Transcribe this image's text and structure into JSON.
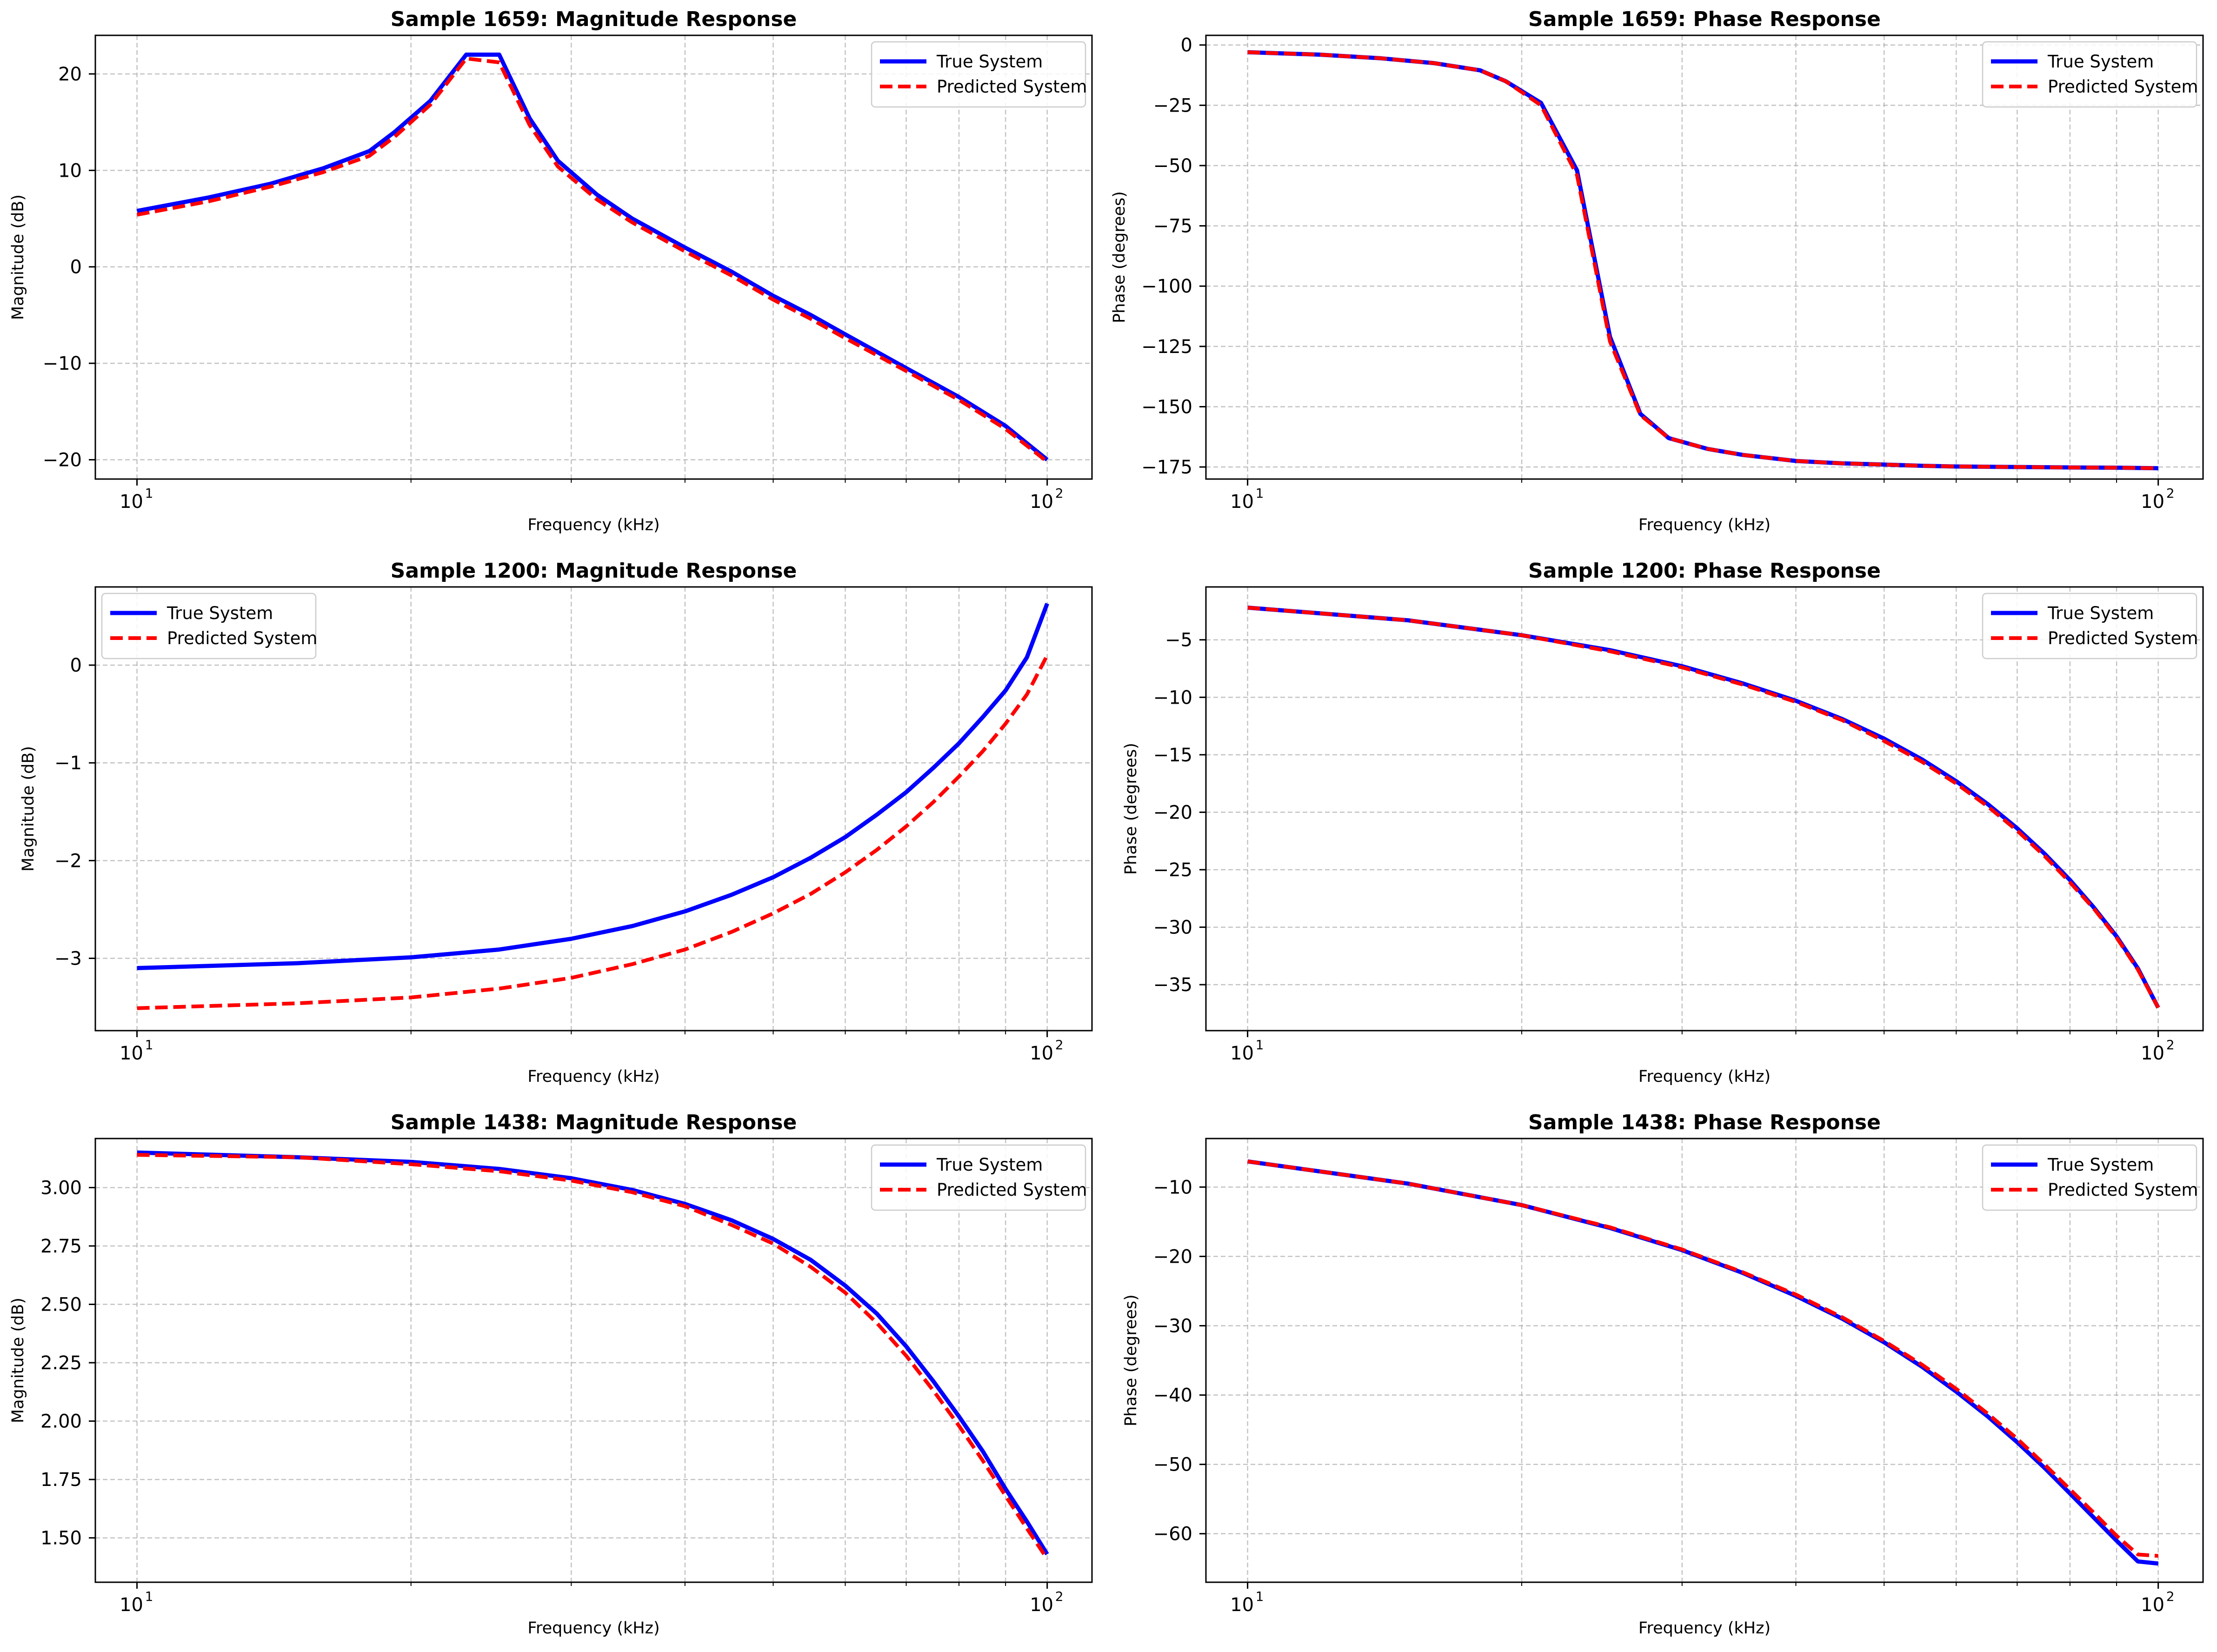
{
  "colors": {
    "true_series": "#0000ff",
    "predicted_series": "#ff0000",
    "grid": "#b0b0b0"
  },
  "chart_data": [
    {
      "type": "line",
      "title": "Sample 1659: Magnitude Response",
      "xlabel": "Frequency (kHz)",
      "ylabel": "Magnitude (dB)",
      "xscale": "log",
      "xlim": [
        9,
        112
      ],
      "ylim": [
        -22,
        24
      ],
      "yticks": [
        20,
        10,
        0,
        -10,
        -20
      ],
      "ytick_labels": [
        "20",
        "10",
        "0",
        "−10",
        "−20"
      ],
      "legend": "top-right",
      "grid": true,
      "x": [
        10,
        12,
        14,
        16,
        18,
        19.2,
        21,
        23,
        25,
        27,
        29,
        32,
        35,
        40,
        45,
        50,
        55,
        60,
        70,
        80,
        90,
        100
      ],
      "series": [
        {
          "name": "True System",
          "style": "solid",
          "values": [
            5.8,
            7.2,
            8.6,
            10.2,
            12.0,
            14.0,
            17.2,
            22.0,
            22.0,
            15.4,
            11.0,
            7.5,
            5.0,
            2.0,
            -0.5,
            -3.0,
            -5.0,
            -7.0,
            -10.5,
            -13.5,
            -16.5,
            -20.0
          ]
        },
        {
          "name": "Predicted System",
          "style": "dashed",
          "values": [
            5.4,
            6.8,
            8.3,
            9.8,
            11.5,
            13.5,
            16.8,
            21.6,
            21.2,
            14.7,
            10.4,
            7.0,
            4.6,
            1.6,
            -0.9,
            -3.4,
            -5.4,
            -7.4,
            -10.8,
            -13.8,
            -16.8,
            -20.2
          ]
        }
      ]
    },
    {
      "type": "line",
      "title": "Sample 1659: Phase Response",
      "xlabel": "Frequency (kHz)",
      "ylabel": "Phase (degrees)",
      "xscale": "log",
      "xlim": [
        9,
        112
      ],
      "ylim": [
        -180,
        4
      ],
      "yticks": [
        0,
        -25,
        -50,
        -75,
        -100,
        -125,
        -150,
        -175
      ],
      "ytick_labels": [
        "0",
        "−25",
        "−50",
        "−75",
        "−100",
        "−125",
        "−150",
        "−175"
      ],
      "legend": "top-right",
      "grid": true,
      "x": [
        10,
        12,
        14,
        16,
        18,
        19.2,
        21,
        23,
        25,
        27,
        29,
        32,
        35,
        40,
        45,
        50,
        55,
        60,
        70,
        80,
        90,
        100
      ],
      "series": [
        {
          "name": "True System",
          "style": "solid",
          "values": [
            -3,
            -4,
            -5.5,
            -7.5,
            -10.5,
            -15,
            -24,
            -52,
            -121,
            -153,
            -163,
            -167.5,
            -170,
            -172.5,
            -173.5,
            -174,
            -174.5,
            -174.8,
            -175,
            -175.2,
            -175.3,
            -175.5
          ]
        },
        {
          "name": "Predicted System",
          "style": "dashed",
          "values": [
            -3,
            -4,
            -5.5,
            -7.5,
            -10.5,
            -15,
            -25,
            -54,
            -123,
            -153.5,
            -163,
            -167.5,
            -170,
            -172.5,
            -173.5,
            -174,
            -174.5,
            -174.8,
            -175,
            -175.2,
            -175.3,
            -175.5
          ]
        }
      ]
    },
    {
      "type": "line",
      "title": "Sample 1200: Magnitude Response",
      "xlabel": "Frequency (kHz)",
      "ylabel": "Magnitude (dB)",
      "xscale": "log",
      "xlim": [
        9,
        112
      ],
      "ylim": [
        -3.74,
        0.8
      ],
      "yticks": [
        0,
        -1,
        -2,
        -3
      ],
      "ytick_labels": [
        "0",
        "−1",
        "−2",
        "−3"
      ],
      "legend": "top-left",
      "grid": true,
      "x": [
        10,
        15,
        20,
        25,
        30,
        35,
        40,
        45,
        50,
        55,
        60,
        65,
        70,
        75,
        80,
        85,
        90,
        95,
        100
      ],
      "series": [
        {
          "name": "True System",
          "style": "solid",
          "values": [
            -3.1,
            -3.05,
            -2.99,
            -2.91,
            -2.8,
            -2.67,
            -2.52,
            -2.35,
            -2.17,
            -1.97,
            -1.76,
            -1.53,
            -1.3,
            -1.05,
            -0.8,
            -0.53,
            -0.26,
            0.08,
            0.63
          ]
        },
        {
          "name": "Predicted System",
          "style": "dashed",
          "values": [
            -3.51,
            -3.46,
            -3.4,
            -3.31,
            -3.2,
            -3.06,
            -2.91,
            -2.73,
            -2.54,
            -2.34,
            -2.12,
            -1.89,
            -1.65,
            -1.4,
            -1.14,
            -0.88,
            -0.6,
            -0.3,
            0.1
          ]
        }
      ]
    },
    {
      "type": "line",
      "title": "Sample 1200: Phase Response",
      "xlabel": "Frequency (kHz)",
      "ylabel": "Phase (degrees)",
      "xscale": "log",
      "xlim": [
        9,
        112
      ],
      "ylim": [
        -39,
        -0.4
      ],
      "yticks": [
        -5,
        -10,
        -15,
        -20,
        -25,
        -30,
        -35
      ],
      "ytick_labels": [
        "−5",
        "−10",
        "−15",
        "−20",
        "−25",
        "−30",
        "−35"
      ],
      "legend": "top-right",
      "grid": true,
      "x": [
        10,
        15,
        20,
        25,
        30,
        35,
        40,
        45,
        50,
        55,
        60,
        65,
        70,
        75,
        80,
        85,
        90,
        95,
        100
      ],
      "series": [
        {
          "name": "True System",
          "style": "solid",
          "values": [
            -2.2,
            -3.3,
            -4.6,
            -5.9,
            -7.3,
            -8.8,
            -10.3,
            -11.9,
            -13.6,
            -15.4,
            -17.3,
            -19.3,
            -21.4,
            -23.6,
            -25.9,
            -28.3,
            -30.8,
            -33.6,
            -37.0
          ]
        },
        {
          "name": "Predicted System",
          "style": "dashed",
          "values": [
            -2.2,
            -3.3,
            -4.6,
            -6.0,
            -7.4,
            -8.9,
            -10.4,
            -12.0,
            -13.8,
            -15.6,
            -17.5,
            -19.5,
            -21.6,
            -23.8,
            -26.1,
            -28.4,
            -30.9,
            -33.7,
            -37.0
          ]
        }
      ]
    },
    {
      "type": "line",
      "title": "Sample 1438: Magnitude Response",
      "xlabel": "Frequency (kHz)",
      "ylabel": "Magnitude (dB)",
      "xscale": "log",
      "xlim": [
        9,
        112
      ],
      "ylim": [
        1.31,
        3.21
      ],
      "yticks": [
        3.0,
        2.75,
        2.5,
        2.25,
        2.0,
        1.75,
        1.5
      ],
      "ytick_labels": [
        "3.00",
        "2.75",
        "2.50",
        "2.25",
        "2.00",
        "1.75",
        "1.50"
      ],
      "legend": "top-right",
      "grid": true,
      "x": [
        10,
        15,
        20,
        25,
        30,
        35,
        40,
        45,
        50,
        55,
        60,
        65,
        70,
        75,
        80,
        85,
        90,
        95,
        100
      ],
      "series": [
        {
          "name": "True System",
          "style": "solid",
          "values": [
            3.15,
            3.13,
            3.11,
            3.08,
            3.04,
            2.99,
            2.93,
            2.86,
            2.78,
            2.69,
            2.58,
            2.46,
            2.32,
            2.17,
            2.02,
            1.87,
            1.71,
            1.57,
            1.43
          ]
        },
        {
          "name": "Predicted System",
          "style": "dashed",
          "values": [
            3.14,
            3.13,
            3.1,
            3.07,
            3.03,
            2.98,
            2.92,
            2.84,
            2.76,
            2.66,
            2.55,
            2.42,
            2.28,
            2.13,
            1.98,
            1.83,
            1.68,
            1.54,
            1.41
          ]
        }
      ]
    },
    {
      "type": "line",
      "title": "Sample 1438: Phase Response",
      "xlabel": "Frequency (kHz)",
      "ylabel": "Phase (degrees)",
      "xscale": "log",
      "xlim": [
        9,
        112
      ],
      "ylim": [
        -67,
        -3
      ],
      "yticks": [
        -10,
        -20,
        -30,
        -40,
        -50,
        -60
      ],
      "ytick_labels": [
        "−10",
        "−20",
        "−30",
        "−40",
        "−50",
        "−60"
      ],
      "legend": "top-right",
      "grid": true,
      "x": [
        10,
        15,
        20,
        25,
        30,
        35,
        40,
        45,
        50,
        55,
        60,
        65,
        70,
        75,
        80,
        85,
        90,
        95,
        100
      ],
      "series": [
        {
          "name": "True System",
          "style": "solid",
          "values": [
            -6.3,
            -9.5,
            -12.6,
            -15.9,
            -19.1,
            -22.4,
            -25.7,
            -29.0,
            -32.4,
            -35.9,
            -39.5,
            -43.1,
            -46.8,
            -50.5,
            -54.2,
            -57.7,
            -61.0,
            -64.0,
            -64.3
          ]
        },
        {
          "name": "Predicted System",
          "style": "dashed",
          "values": [
            -6.3,
            -9.5,
            -12.6,
            -15.8,
            -19.0,
            -22.3,
            -25.5,
            -28.8,
            -32.2,
            -35.6,
            -39.1,
            -42.7,
            -46.3,
            -50.0,
            -53.6,
            -57.0,
            -60.3,
            -63.0,
            -63.2
          ]
        }
      ]
    }
  ]
}
